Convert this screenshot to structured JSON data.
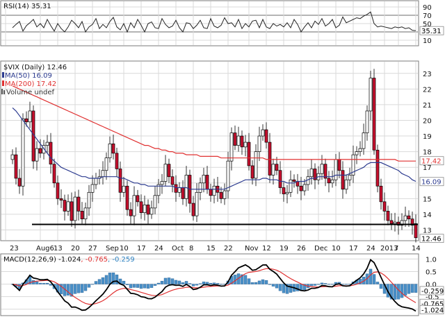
{
  "chart_data": {
    "type": "candlestick",
    "x_labels": [
      {
        "label": "23",
        "i": -2
      },
      {
        "label": "Aug6",
        "i": 8
      },
      {
        "label": "13",
        "i": 13
      },
      {
        "label": "20",
        "i": 18
      },
      {
        "label": "27",
        "i": 23
      },
      {
        "label": "Sep",
        "i": 28
      },
      {
        "label": "10",
        "i": 32
      },
      {
        "label": "17",
        "i": 37
      },
      {
        "label": "24",
        "i": 42
      },
      {
        "label": "Oct",
        "i": 47
      },
      {
        "label": "8",
        "i": 52
      },
      {
        "label": "15",
        "i": 57
      },
      {
        "label": "22",
        "i": 62
      },
      {
        "label": "Nov",
        "i": 68
      },
      {
        "label": "12",
        "i": 73
      },
      {
        "label": "19",
        "i": 78
      },
      {
        "label": "26",
        "i": 83
      },
      {
        "label": "Dec",
        "i": 88
      },
      {
        "label": "10",
        "i": 93
      },
      {
        "label": "17",
        "i": 98
      },
      {
        "label": "24",
        "i": 103
      },
      {
        "label": "2013",
        "i": 107
      },
      {
        "label": "7",
        "i": 111
      },
      {
        "label": "14",
        "i": 116
      }
    ],
    "rsi": {
      "label": "RSI(14)",
      "value": "35.31",
      "ylim": [
        0,
        100
      ],
      "ticks": [
        "90",
        "70",
        "50",
        "30",
        "10"
      ],
      "tick_values": [
        90,
        70,
        50,
        30,
        10
      ],
      "levels": [
        70,
        30
      ],
      "values": [
        40,
        48,
        55,
        32,
        45,
        52,
        60,
        42,
        50,
        40,
        60,
        45,
        32,
        50,
        38,
        30,
        42,
        58,
        50,
        40,
        55,
        30,
        42,
        48,
        62,
        38,
        48,
        40,
        55,
        65,
        42,
        35,
        50,
        30,
        52,
        40,
        60,
        46,
        30,
        50,
        54,
        40,
        38,
        62,
        48,
        40,
        44,
        58,
        40,
        30,
        52,
        50,
        38,
        46,
        58,
        40,
        38,
        62,
        44,
        40,
        46,
        64,
        50,
        52,
        42,
        60,
        38,
        50,
        42,
        56,
        58,
        40,
        60,
        42,
        38,
        50,
        44,
        48,
        42,
        52,
        40,
        60,
        48,
        30,
        42,
        52,
        40,
        56,
        48,
        62,
        44,
        50,
        60,
        40,
        46,
        66,
        52,
        56,
        60,
        64,
        62,
        68,
        72,
        78,
        50,
        42,
        44,
        42,
        40,
        38,
        42,
        40,
        42,
        38,
        40,
        34,
        33
      ],
      "value_tag": "35.31"
    },
    "price": {
      "title": "$VIX (Daily) 12.46",
      "legend": [
        {
          "label": "MA(50) 16.09",
          "color": "#2b3a8f"
        },
        {
          "label": "MA(200) 17.42",
          "color": "#e03030"
        },
        {
          "label": "Volume undef",
          "color": "#555555"
        }
      ],
      "ylim": [
        12.4,
        23.7
      ],
      "ticks": [
        "23",
        "22",
        "21",
        "20",
        "19",
        "18",
        "17",
        "16",
        "15",
        "14",
        "13"
      ],
      "tick_values": [
        23,
        22,
        21,
        20,
        19,
        18,
        17,
        16,
        15,
        14,
        13
      ],
      "support_line": 13.35,
      "last_tags": [
        {
          "text": "17.42",
          "value": 17.42,
          "bg": "#ffffff",
          "color": "#e03030"
        },
        {
          "text": "16.09",
          "value": 16.09,
          "bg": "#ffffff",
          "color": "#2b3a8f"
        },
        {
          "text": "12.46",
          "value": 12.46,
          "bg": "#ffffff",
          "color": "#000000"
        }
      ],
      "closes": [
        17.8,
        16.3,
        15.8,
        20.1,
        19.9,
        20.6,
        17.4,
        18.2,
        17.9,
        18.4,
        18.6,
        17.2,
        16.0,
        15.0,
        14.9,
        14.2,
        14.8,
        13.6,
        15.1,
        14.2,
        13.7,
        14.4,
        15.4,
        15.9,
        16.3,
        16.4,
        16.8,
        17.6,
        18.5,
        17.9,
        16.9,
        15.4,
        15.8,
        14.3,
        13.9,
        15.2,
        14.8,
        14.1,
        14.6,
        14.0,
        14.4,
        15.2,
        15.9,
        16.1,
        17.2,
        16.4,
        15.9,
        15.4,
        15.7,
        15.0,
        16.5,
        14.7,
        13.9,
        15.4,
        16.0,
        16.5,
        15.6,
        15.2,
        15.8,
        15.4,
        15.0,
        15.5,
        17.4,
        19.2,
        18.4,
        19.0,
        18.3,
        18.6,
        17.1,
        16.3,
        18.0,
        19.0,
        19.4,
        18.6,
        16.5,
        17.2,
        16.8,
        15.7,
        15.3,
        15.4,
        16.2,
        16.1,
        15.8,
        15.5,
        15.9,
        16.4,
        16.9,
        16.2,
        16.6,
        17.2,
        16.3,
        16.0,
        16.2,
        17.5,
        16.8,
        15.6,
        16.2,
        16.5,
        17.8,
        18.0,
        18.2,
        19.2,
        20.6,
        22.7,
        18.1,
        15.8,
        14.8,
        14.2,
        13.6,
        13.4,
        13.5,
        13.3,
        13.6,
        13.9,
        13.7,
        13.3,
        12.5
      ],
      "opens": [
        17.5,
        17.8,
        16.3,
        15.8,
        20.1,
        19.9,
        20.6,
        17.4,
        18.2,
        17.9,
        18.4,
        18.6,
        17.2,
        16.0,
        15.0,
        14.9,
        14.2,
        14.8,
        13.6,
        15.1,
        14.2,
        13.7,
        14.4,
        15.4,
        15.9,
        16.3,
        16.4,
        16.8,
        17.6,
        18.5,
        17.9,
        16.9,
        15.4,
        15.8,
        14.3,
        13.9,
        15.2,
        14.8,
        14.1,
        14.6,
        14.0,
        14.4,
        15.2,
        15.9,
        16.1,
        17.2,
        16.4,
        15.9,
        15.4,
        15.7,
        15.0,
        16.5,
        14.7,
        13.9,
        15.4,
        16.0,
        16.5,
        15.6,
        15.2,
        15.8,
        15.4,
        15.0,
        15.5,
        17.4,
        19.2,
        18.4,
        19.0,
        18.3,
        18.6,
        17.1,
        16.3,
        18.0,
        19.0,
        19.4,
        18.6,
        16.5,
        17.2,
        16.8,
        15.7,
        15.3,
        15.4,
        16.2,
        16.1,
        15.8,
        15.5,
        15.9,
        16.4,
        16.9,
        16.2,
        16.6,
        17.2,
        16.3,
        16.0,
        16.2,
        17.5,
        16.8,
        15.6,
        16.2,
        16.5,
        17.8,
        18.0,
        18.2,
        19.2,
        20.6,
        22.7,
        18.1,
        15.8,
        14.8,
        14.2,
        13.6,
        13.4,
        13.5,
        13.3,
        13.6,
        13.9,
        13.7,
        13.4
      ],
      "ma50": [
        20.8,
        20.6,
        20.3,
        20.0,
        19.7,
        19.4,
        19.1,
        18.8,
        18.5,
        18.2,
        17.9,
        17.6,
        17.4,
        17.2,
        17.0,
        16.9,
        16.8,
        16.7,
        16.6,
        16.5,
        16.4,
        16.4,
        16.3,
        16.3,
        16.3,
        16.3,
        16.4,
        16.4,
        16.4,
        16.4,
        16.4,
        16.3,
        16.3,
        16.2,
        16.1,
        16.0,
        16.0,
        15.9,
        15.9,
        15.8,
        15.8,
        15.8,
        15.8,
        15.8,
        15.8,
        15.8,
        15.8,
        15.7,
        15.7,
        15.7,
        15.7,
        15.6,
        15.6,
        15.6,
        15.6,
        15.6,
        15.6,
        15.6,
        15.6,
        15.6,
        15.6,
        15.6,
        15.7,
        15.8,
        15.9,
        16.0,
        16.1,
        16.2,
        16.2,
        16.2,
        16.2,
        16.2,
        16.3,
        16.3,
        16.2,
        16.2,
        16.2,
        16.1,
        16.1,
        16.0,
        16.0,
        16.0,
        16.1,
        16.1,
        16.1,
        16.2,
        16.3,
        16.3,
        16.4,
        16.4,
        16.4,
        16.4,
        16.4,
        16.5,
        16.5,
        16.5,
        16.5,
        16.6,
        16.7,
        16.8,
        16.9,
        17.0,
        17.2,
        17.3,
        17.3,
        17.3,
        17.3,
        17.2,
        17.1,
        17.0,
        16.9,
        16.8,
        16.6,
        16.5,
        16.4,
        16.2,
        16.1
      ],
      "ma200": [
        22.2,
        22.1,
        22.0,
        21.9,
        21.8,
        21.7,
        21.6,
        21.5,
        21.4,
        21.3,
        21.2,
        21.1,
        21.0,
        20.9,
        20.8,
        20.7,
        20.6,
        20.5,
        20.4,
        20.3,
        20.2,
        20.1,
        20.0,
        19.9,
        19.8,
        19.7,
        19.6,
        19.5,
        19.4,
        19.3,
        19.2,
        19.1,
        19.0,
        18.9,
        18.8,
        18.7,
        18.6,
        18.5,
        18.4,
        18.4,
        18.3,
        18.2,
        18.2,
        18.1,
        18.1,
        18.0,
        18.0,
        17.9,
        17.9,
        17.9,
        17.8,
        17.8,
        17.8,
        17.8,
        17.7,
        17.7,
        17.7,
        17.7,
        17.7,
        17.7,
        17.6,
        17.6,
        17.6,
        17.6,
        17.6,
        17.6,
        17.6,
        17.6,
        17.6,
        17.6,
        17.6,
        17.6,
        17.6,
        17.5,
        17.5,
        17.5,
        17.5,
        17.5,
        17.5,
        17.5,
        17.5,
        17.5,
        17.5,
        17.5,
        17.5,
        17.5,
        17.5,
        17.5,
        17.5,
        17.5,
        17.5,
        17.5,
        17.5,
        17.5,
        17.5,
        17.5,
        17.5,
        17.5,
        17.5,
        17.5,
        17.5,
        17.5,
        17.5,
        17.5,
        17.5,
        17.5,
        17.5,
        17.5,
        17.5,
        17.5,
        17.5,
        17.4,
        17.4,
        17.4,
        17.4,
        17.4,
        17.4
      ]
    },
    "macd": {
      "label": "MACD(12,26,9)",
      "values_text": [
        "-1.024",
        ", -0.765",
        ", -0.259"
      ],
      "values_colors": [
        "#000000",
        "#e03030",
        "#2a7fbf"
      ],
      "ylim": [
        -1.2,
        1.15
      ],
      "ticks": [
        "1.0",
        "0.5",
        "0.0",
        "-0.5",
        "-1.0"
      ],
      "tick_values": [
        1.0,
        0.5,
        0.0,
        -0.5,
        -1.0
      ],
      "value_tags": [
        {
          "text": "-0.259",
          "value": -0.259
        },
        {
          "text": "-0.765",
          "value": -0.765
        },
        {
          "text": "-1.024",
          "value": -1.024
        }
      ]
    }
  }
}
